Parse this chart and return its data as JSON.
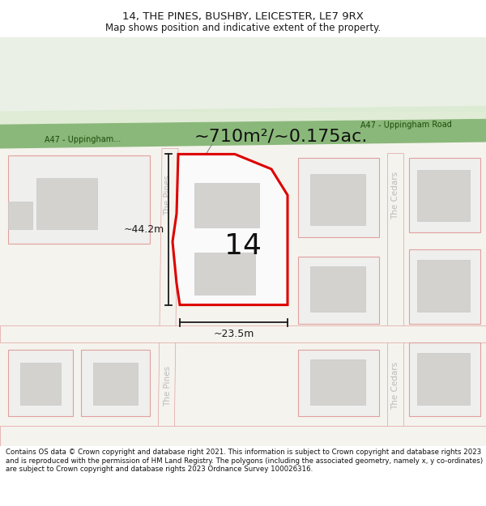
{
  "title": "14, THE PINES, BUSHBY, LEICESTER, LE7 9RX",
  "subtitle": "Map shows position and indicative extent of the property.",
  "footer": "Contains OS data © Crown copyright and database right 2021. This information is subject to Crown copyright and database rights 2023 and is reproduced with the permission of HM Land Registry. The polygons (including the associated geometry, namely x, y co-ordinates) are subject to Crown copyright and database rights 2023 Ordnance Survey 100026316.",
  "road_label_right": "A47 - Uppingham Road",
  "road_label_left": "A47 - Uppingham...",
  "street_label_pines_top": "The Pines",
  "street_label_pines_bot": "The Pines",
  "street_label_cedars_top": "The Cedars",
  "street_label_cedars_bot": "The Cedars",
  "area_label": "~710m²/~0.175ac.",
  "dim_width": "~23.5m",
  "dim_height": "~44.2m",
  "plot_number": "14",
  "road_green": "#8ab87a",
  "road_shoulder": "#d4e8c8",
  "map_bg": "#f5f3ee",
  "map_upper_bg": "#eaf0e5",
  "plot_fill": "#fafafa",
  "plot_edge": "#dd0000",
  "block_fill": "#efefed",
  "block_edge": "#e0a0a0",
  "building_fill": "#d3d2cf",
  "building_edge": "#c8c8c8",
  "road_fill": "#f5f3ee",
  "street_color": "#bbbbbb",
  "dim_color": "#1a1a1a",
  "text_color": "#1a1a1a"
}
